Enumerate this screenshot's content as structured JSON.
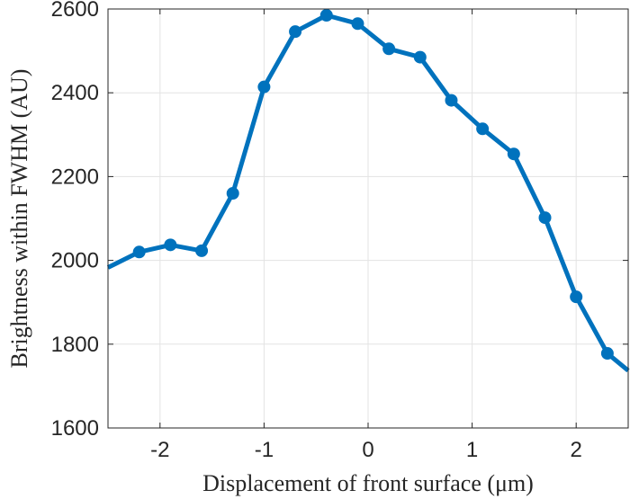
{
  "chart_data": {
    "type": "line",
    "title": "",
    "xlabel": "Displacement of front surface (μm)",
    "ylabel": "Brightness within FWHM (AU)",
    "xlim": [
      -2.5,
      2.5
    ],
    "ylim": [
      1600,
      2600
    ],
    "xticks": [
      -2,
      -1,
      0,
      1,
      2
    ],
    "yticks": [
      1600,
      1800,
      2000,
      2200,
      2400,
      2600
    ],
    "grid": true,
    "legend": "none",
    "series": [
      {
        "color": "#0072BD",
        "markers": true,
        "x": [
          -2.2,
          -1.9,
          -1.6,
          -1.3,
          -1.0,
          -0.7,
          -0.4,
          -0.1,
          0.2,
          0.5,
          0.8,
          1.1,
          1.4,
          1.7,
          2.0,
          2.3
        ],
        "y": [
          2020,
          2037,
          2023,
          2160,
          2414,
          2546,
          2585,
          2565,
          2505,
          2485,
          2382,
          2314,
          2254,
          2102,
          1913,
          1778
        ]
      }
    ],
    "line_extends_to_axes": {
      "left": {
        "x": -2.5,
        "y": 1983
      },
      "right": {
        "x": 2.5,
        "y": 1737
      }
    }
  }
}
